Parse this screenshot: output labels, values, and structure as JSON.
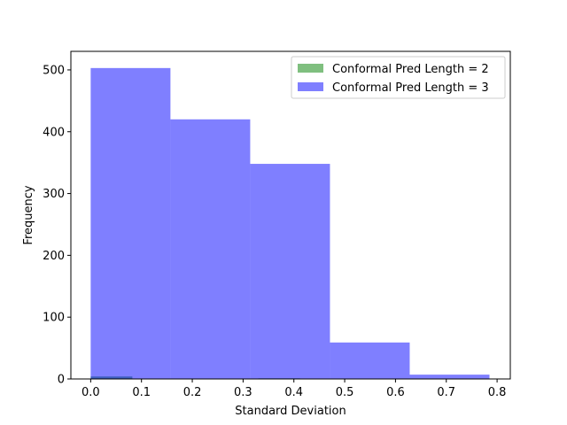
{
  "chart_data": {
    "type": "histogram",
    "title": "",
    "xlabel": "Standard Deviation",
    "ylabel": "Frequency",
    "xlim": [
      -0.039,
      0.826
    ],
    "ylim": [
      0,
      530
    ],
    "xticks": [
      0.0,
      0.1,
      0.2,
      0.3,
      0.4,
      0.5,
      0.6,
      0.7,
      0.8
    ],
    "xtick_labels": [
      "0.0",
      "0.1",
      "0.2",
      "0.3",
      "0.4",
      "0.5",
      "0.6",
      "0.7",
      "0.8"
    ],
    "yticks": [
      0,
      100,
      200,
      300,
      400,
      500
    ],
    "ytick_labels": [
      "0",
      "100",
      "200",
      "300",
      "400",
      "500"
    ],
    "grid": false,
    "legend_position": "top-right",
    "series": [
      {
        "name": "Conformal Pred Length = 2",
        "color": "#008000",
        "alpha": 0.5,
        "bins": [
          {
            "x0": 0.0,
            "x1": 0.082,
            "value": 4
          },
          {
            "x0": 0.33,
            "x1": 0.412,
            "value": 1
          }
        ]
      },
      {
        "name": "Conformal Pred Length = 3",
        "color": "#0000ff",
        "alpha": 0.5,
        "bins": [
          {
            "x0": 0.0,
            "x1": 0.157,
            "value": 503
          },
          {
            "x0": 0.157,
            "x1": 0.314,
            "value": 420
          },
          {
            "x0": 0.314,
            "x1": 0.471,
            "value": 348
          },
          {
            "x0": 0.471,
            "x1": 0.628,
            "value": 59
          },
          {
            "x0": 0.628,
            "x1": 0.785,
            "value": 7
          }
        ]
      }
    ]
  }
}
